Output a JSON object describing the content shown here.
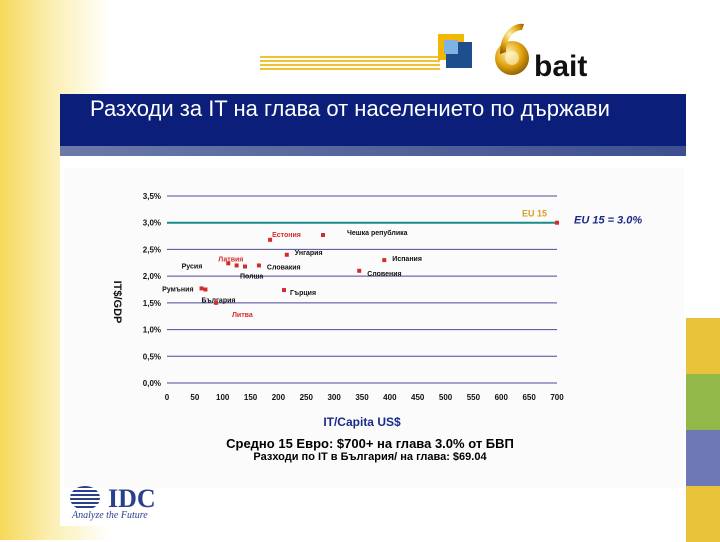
{
  "slide": {
    "title": "Разходи за IT на глава от населението по държави",
    "logo_text": "bait",
    "logo_digit": "6",
    "summary_line1": "Средно 15 Евро: $700+ на глава 3.0% от БВП",
    "summary_line2": "Разходи по IT в България/ на глава: $69.04",
    "idc_text": "IDC",
    "idc_tagline": "Analyze the Future"
  },
  "colors": {
    "title_band": "#0b1f7a",
    "point": "#d62b2b",
    "point_label": "#111111",
    "gridline": "#4a4a9a",
    "eu_line": "#1a8b8b"
  },
  "chart_data": {
    "type": "scatter",
    "xlabel": "IT/Capita US$",
    "ylabel": "IT$/GDP",
    "xlim": [
      0,
      700
    ],
    "ylim": [
      0,
      3.5
    ],
    "xticks": [
      0,
      50,
      100,
      150,
      200,
      250,
      300,
      350,
      400,
      450,
      500,
      550,
      600,
      650,
      700
    ],
    "yticks": [
      0,
      0.5,
      1.0,
      1.5,
      2.0,
      2.5,
      3.0,
      3.5
    ],
    "ytick_labels": [
      "0,0%",
      "0,5%",
      "1,0%",
      "1,5%",
      "2,0%",
      "2,5%",
      "3,0%",
      "3,5%"
    ],
    "grid": true,
    "points": [
      {
        "label": "Естония",
        "x": 185,
        "y": 2.68,
        "label_color": "#d62b2b"
      },
      {
        "label": "Чешка република",
        "x": 280,
        "y": 2.77,
        "label_color": "#111111"
      },
      {
        "label": "Латвия",
        "x": 110,
        "y": 2.24,
        "label_color": "#d62b2b"
      },
      {
        "label": "Русия",
        "x": 125,
        "y": 2.2,
        "label_color": "#111111"
      },
      {
        "label": "Унгария",
        "x": 215,
        "y": 2.4,
        "label_color": "#111111"
      },
      {
        "label": "Испания",
        "x": 390,
        "y": 2.3,
        "label_color": "#111111"
      },
      {
        "label": "Полша",
        "x": 140,
        "y": 2.18,
        "label_color": "#111111"
      },
      {
        "label": "Словакия",
        "x": 165,
        "y": 2.2,
        "label_color": "#111111"
      },
      {
        "label": "Словения",
        "x": 345,
        "y": 2.1,
        "label_color": "#111111"
      },
      {
        "label": "Румъния",
        "x": 62,
        "y": 1.77,
        "label_color": "#111111"
      },
      {
        "label": "България",
        "x": 69,
        "y": 1.75,
        "label_color": "#111111"
      },
      {
        "label": "Гърция",
        "x": 210,
        "y": 1.74,
        "label_color": "#111111"
      },
      {
        "label": "Литва",
        "x": 88,
        "y": 1.5,
        "label_color": "#d62b2b"
      },
      {
        "label": "EU 15",
        "x": 700,
        "y": 3.0,
        "label_color": "#d6a020"
      }
    ],
    "reference_line": {
      "y": 3.0,
      "label": "EU 15 = 3.0%"
    }
  }
}
